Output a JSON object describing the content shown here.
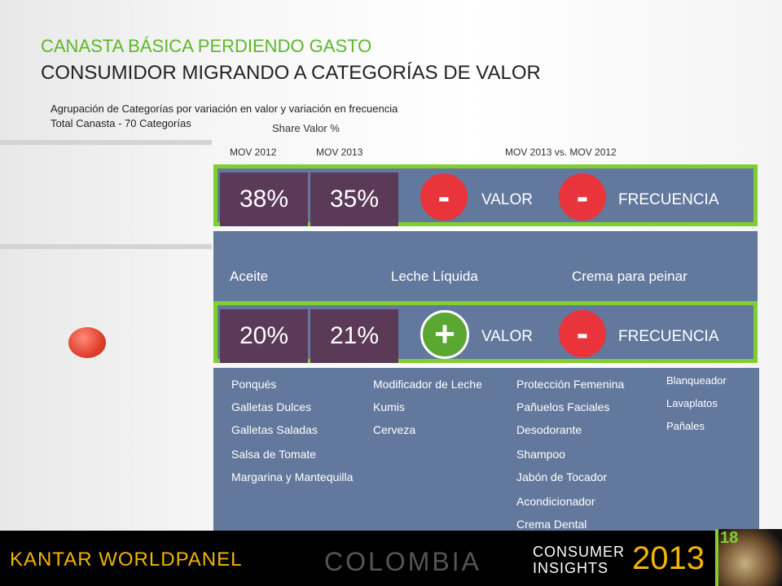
{
  "title": {
    "line1": "CANASTA BÁSICA PERDIENDO GASTO",
    "line2": "CONSUMIDOR MIGRANDO A CATEGORÍAS DE VALOR"
  },
  "subtitle": {
    "line1": "Agrupación de Categorías por variación en valor y variación en frecuencia",
    "line2": "Total Canasta - 70 Categorías"
  },
  "headers": {
    "share": "Share Valor %",
    "mov2012": "MOV 2012",
    "mov2013": "MOV 2013",
    "comparison": "MOV 2013 vs. MOV 2012"
  },
  "row1": {
    "share2012": "38%",
    "share2013": "35%",
    "valor_sign": "-",
    "valor_label": "VALOR",
    "freq_sign": "-",
    "freq_label": "FRECUENCIA"
  },
  "row1_categories": [
    "Aceite",
    "Leche Líquida",
    "Crema para peinar"
  ],
  "row2": {
    "share2012": "20%",
    "share2013": "21%",
    "valor_sign": "+",
    "valor_label": "VALOR",
    "freq_sign": "-",
    "freq_label": "FRECUENCIA"
  },
  "row2_columns": [
    [
      "Ponqués",
      "Galletas Dulces",
      "Galletas Saladas",
      "Salsa de Tomate",
      "Margarina y Mantequilla"
    ],
    [
      "Modificador de Leche",
      "Kumis",
      "Cerveza"
    ],
    [
      "Protección Femenina",
      "Pañuelos Faciales",
      "Desodorante",
      "Shampoo",
      "Jabón de Tocador",
      "Acondicionador",
      "Crema Dental"
    ],
    [
      "Blanqueador",
      "Lavaplatos",
      "Pañales"
    ]
  ],
  "footer": {
    "brand": "KANTAR WORLDPANEL",
    "country": "COLOMBIA",
    "consumer": "CONSUMER",
    "insights": "INSIGHTS",
    "year": "2013",
    "page": "18"
  },
  "colors": {
    "green": "#7fcf2f",
    "purple": "#5b3a57",
    "slate": "#63789d",
    "red": "#e8343a",
    "plus_green": "#5aa832",
    "gold": "#f2b500"
  }
}
